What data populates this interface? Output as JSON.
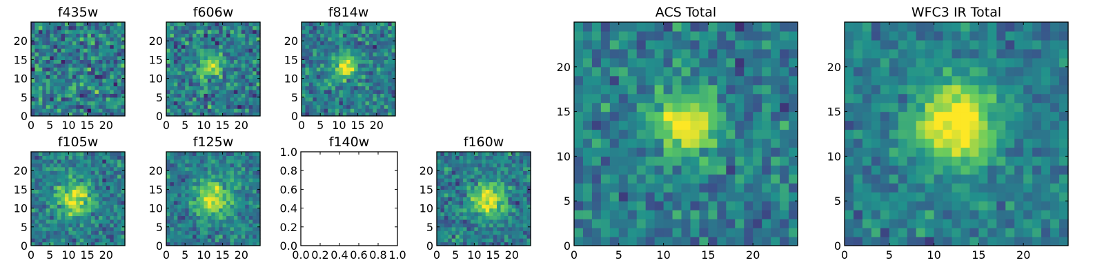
{
  "figure": {
    "description": "",
    "colormap": [
      "#440154",
      "#3b528b",
      "#21918c",
      "#5ec962",
      "#fde725"
    ]
  },
  "chart_data": [
    {
      "type": "heatmap",
      "title": "f435w",
      "grid": false,
      "xlim": [
        0,
        25
      ],
      "ylim": [
        0,
        25
      ],
      "xticks": [
        0,
        5,
        10,
        15,
        20
      ],
      "yticks": [
        0,
        5,
        10,
        15,
        20
      ],
      "xticklabels": [
        "0",
        "5",
        "10",
        "15",
        "20"
      ],
      "yticklabels": [
        "0",
        "5",
        "10",
        "15",
        "20"
      ],
      "pixel_grid": [
        25,
        25
      ],
      "source_peak": [
        12,
        12
      ],
      "source_strength": 0.0,
      "source_sigma": 3.0,
      "noise_level": 0.45,
      "noise_seed": 11
    },
    {
      "type": "heatmap",
      "title": "f606w",
      "grid": false,
      "xlim": [
        0,
        25
      ],
      "ylim": [
        0,
        25
      ],
      "xticks": [
        0,
        5,
        10,
        15,
        20
      ],
      "yticks": [
        0,
        5,
        10,
        15,
        20
      ],
      "xticklabels": [
        "0",
        "5",
        "10",
        "15",
        "20"
      ],
      "yticklabels": [
        "0",
        "5",
        "10",
        "15",
        "20"
      ],
      "pixel_grid": [
        25,
        25
      ],
      "source_peak": [
        11,
        13
      ],
      "source_strength": 0.45,
      "source_sigma": 2.2,
      "noise_level": 0.4,
      "noise_seed": 23
    },
    {
      "type": "heatmap",
      "title": "f814w",
      "grid": false,
      "xlim": [
        0,
        25
      ],
      "ylim": [
        0,
        25
      ],
      "xticks": [
        0,
        5,
        10,
        15,
        20
      ],
      "yticks": [
        0,
        5,
        10,
        15,
        20
      ],
      "xticklabels": [
        "0",
        "5",
        "10",
        "15",
        "20"
      ],
      "yticklabels": [
        "0",
        "5",
        "10",
        "15",
        "20"
      ],
      "pixel_grid": [
        25,
        25
      ],
      "source_peak": [
        11,
        13
      ],
      "source_strength": 0.55,
      "source_sigma": 2.2,
      "noise_level": 0.35,
      "noise_seed": 37
    },
    {
      "type": "heatmap",
      "title": "f105w",
      "grid": false,
      "xlim": [
        0,
        25
      ],
      "ylim": [
        0,
        25
      ],
      "xticks": [
        0,
        5,
        10,
        15,
        20
      ],
      "yticks": [
        0,
        5,
        10,
        15,
        20
      ],
      "xticklabels": [
        "0",
        "5",
        "10",
        "15",
        "20"
      ],
      "yticklabels": [
        "0",
        "5",
        "10",
        "15",
        "20"
      ],
      "pixel_grid": [
        25,
        25
      ],
      "source_peak": [
        11,
        12
      ],
      "source_strength": 0.55,
      "source_sigma": 3.0,
      "noise_level": 0.32,
      "noise_seed": 41
    },
    {
      "type": "heatmap",
      "title": "f125w",
      "grid": false,
      "xlim": [
        0,
        25
      ],
      "ylim": [
        0,
        25
      ],
      "xticks": [
        0,
        5,
        10,
        15,
        20
      ],
      "yticks": [
        0,
        5,
        10,
        15,
        20
      ],
      "xticklabels": [
        "0",
        "5",
        "10",
        "15",
        "20"
      ],
      "yticklabels": [
        "0",
        "5",
        "10",
        "15",
        "20"
      ],
      "pixel_grid": [
        25,
        25
      ],
      "source_peak": [
        12,
        12
      ],
      "source_strength": 0.55,
      "source_sigma": 3.2,
      "noise_level": 0.3,
      "noise_seed": 53
    },
    {
      "type": "empty",
      "title": "f140w",
      "grid": false,
      "xlim": [
        0,
        1
      ],
      "ylim": [
        0,
        1
      ],
      "xticks": [
        0,
        0.2,
        0.4,
        0.6,
        0.8,
        1.0
      ],
      "yticks": [
        0,
        0.2,
        0.4,
        0.6,
        0.8,
        1.0
      ],
      "xticklabels": [
        "0.0",
        "0.2",
        "0.4",
        "0.6",
        "0.8",
        "1.0"
      ],
      "yticklabels": [
        "0.0",
        "0.2",
        "0.4",
        "0.6",
        "0.8",
        "1.0"
      ]
    },
    {
      "type": "heatmap",
      "title": "f160w",
      "grid": false,
      "xlim": [
        0,
        25
      ],
      "ylim": [
        0,
        25
      ],
      "xticks": [
        0,
        5,
        10,
        15,
        20
      ],
      "yticks": [
        0,
        5,
        10,
        15,
        20
      ],
      "xticklabels": [
        "0",
        "5",
        "10",
        "15",
        "20"
      ],
      "yticklabels": [
        "0",
        "5",
        "10",
        "15",
        "20"
      ],
      "pixel_grid": [
        25,
        25
      ],
      "source_peak": [
        13,
        12
      ],
      "source_strength": 0.6,
      "source_sigma": 3.0,
      "noise_level": 0.32,
      "noise_seed": 67
    },
    {
      "type": "heatmap",
      "title": "ACS Total",
      "grid": false,
      "xlim": [
        0,
        25
      ],
      "ylim": [
        0,
        25
      ],
      "xticks": [
        0,
        5,
        10,
        15,
        20
      ],
      "yticks": [
        0,
        5,
        10,
        15,
        20
      ],
      "xticklabels": [
        "0",
        "5",
        "10",
        "15",
        "20"
      ],
      "yticklabels": [
        "0",
        "5",
        "10",
        "15",
        "20"
      ],
      "pixel_grid": [
        25,
        25
      ],
      "source_peak": [
        12,
        13
      ],
      "source_strength": 0.6,
      "source_sigma": 2.4,
      "noise_level": 0.32,
      "noise_seed": 79
    },
    {
      "type": "heatmap",
      "title": "WFC3 IR Total",
      "grid": false,
      "xlim": [
        0,
        25
      ],
      "ylim": [
        0,
        25
      ],
      "xticks": [
        0,
        5,
        10,
        15,
        20
      ],
      "yticks": [
        0,
        5,
        10,
        15,
        20
      ],
      "xticklabels": [
        "0",
        "5",
        "10",
        "15",
        "20"
      ],
      "yticklabels": [
        "0",
        "5",
        "10",
        "15",
        "20"
      ],
      "pixel_grid": [
        25,
        25
      ],
      "source_peak": [
        12,
        13
      ],
      "source_strength": 0.7,
      "source_sigma": 3.0,
      "noise_level": 0.25,
      "noise_seed": 97
    }
  ]
}
